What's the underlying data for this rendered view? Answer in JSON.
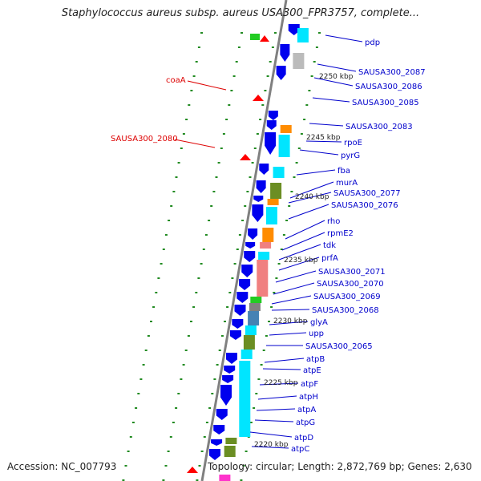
{
  "header": {
    "title": "Staphylococcus aureus subsp. aureus USA300_FPR3757, complete..."
  },
  "footer": {
    "accession": "Accession: NC_007793",
    "topology": "Topology: circular; Length: 2,872,769 bp; Genes: 2,630"
  },
  "colors": {
    "forward_gene": "#0000ee",
    "reverse_gene": "#ff0000",
    "label_blue": "#0000cc",
    "label_red": "#dd0000",
    "tick_green": "#228b22",
    "backbone": "#808080",
    "cyan": "#00e5ff",
    "olive": "#6b8e23",
    "orange": "#ff8c00",
    "salmon": "#f08080",
    "steel": "#4682b4",
    "gray": "#bbbbbb",
    "green": "#22cc22",
    "magenta": "#ff33cc"
  },
  "scale_labels": [
    "2250 kbp",
    "2245 kbp",
    "2240 kbp",
    "2235 kbp",
    "2230 kbp",
    "2225 kbp",
    "2220 kbp"
  ],
  "genes_right": [
    "pdp",
    "SAUSA300_2087",
    "SAUSA300_2086",
    "SAUSA300_2085",
    "SAUSA300_2083",
    "rpoE",
    "pyrG",
    "fba",
    "murA",
    "SAUSA300_2077",
    "SAUSA300_2076",
    "rho",
    "rpmE2",
    "tdk",
    "prfA",
    "SAUSA300_2071",
    "SAUSA300_2070",
    "SAUSA300_2069",
    "SAUSA300_2068",
    "glyA",
    "upp",
    "SAUSA300_2065",
    "atpB",
    "atpE",
    "atpF",
    "atpH",
    "atpA",
    "atpG",
    "atpD",
    "atpC"
  ],
  "genes_left": [
    "coaA",
    "SAUSA300_2080"
  ]
}
